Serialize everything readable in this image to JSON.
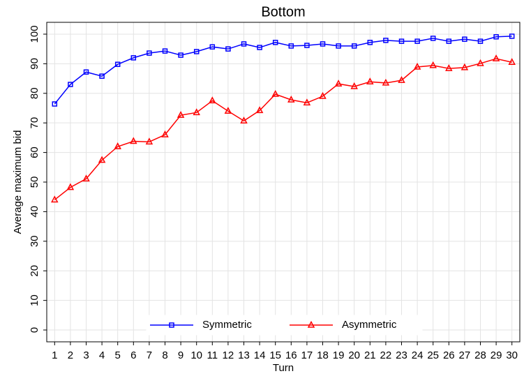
{
  "chart_data": {
    "type": "line",
    "title": "Bottom",
    "x_label": "Turn",
    "y_label": "Average maximum bid",
    "x": [
      1,
      2,
      3,
      4,
      5,
      6,
      7,
      8,
      9,
      10,
      11,
      12,
      13,
      14,
      15,
      16,
      17,
      18,
      19,
      20,
      21,
      22,
      23,
      24,
      25,
      26,
      27,
      28,
      29,
      30
    ],
    "xlim": [
      0.5,
      30.5
    ],
    "xticks": [
      1,
      2,
      3,
      4,
      5,
      6,
      7,
      8,
      9,
      10,
      11,
      12,
      13,
      14,
      15,
      16,
      17,
      18,
      19,
      20,
      21,
      22,
      23,
      24,
      25,
      26,
      27,
      28,
      29,
      30
    ],
    "ylim": [
      -4,
      104
    ],
    "yticks": [
      0,
      10,
      20,
      30,
      40,
      50,
      60,
      70,
      80,
      90,
      100
    ],
    "grid": true,
    "legend": "bottom",
    "series": [
      {
        "name": "Symmetric",
        "color": "#0000ff",
        "marker": "square",
        "values": [
          76.4,
          83.0,
          87.2,
          85.8,
          89.8,
          92.0,
          93.6,
          94.3,
          92.9,
          94.1,
          95.7,
          95.0,
          96.7,
          95.5,
          97.2,
          96.0,
          96.2,
          96.7,
          96.0,
          96.0,
          97.2,
          97.9,
          97.6,
          97.6,
          98.6,
          97.6,
          98.3,
          97.6,
          99.1,
          99.3
        ]
      },
      {
        "name": "Asymmetric",
        "color": "#ff0000",
        "marker": "triangle",
        "values": [
          44.0,
          48.2,
          51.1,
          57.4,
          62.0,
          63.8,
          63.6,
          66.0,
          72.6,
          73.5,
          77.5,
          74.0,
          70.7,
          74.2,
          79.7,
          77.8,
          76.8,
          79.0,
          83.2,
          82.3,
          83.9,
          83.5,
          84.4,
          88.9,
          89.4,
          88.4,
          88.7,
          90.1,
          91.7,
          90.5
        ]
      }
    ]
  }
}
